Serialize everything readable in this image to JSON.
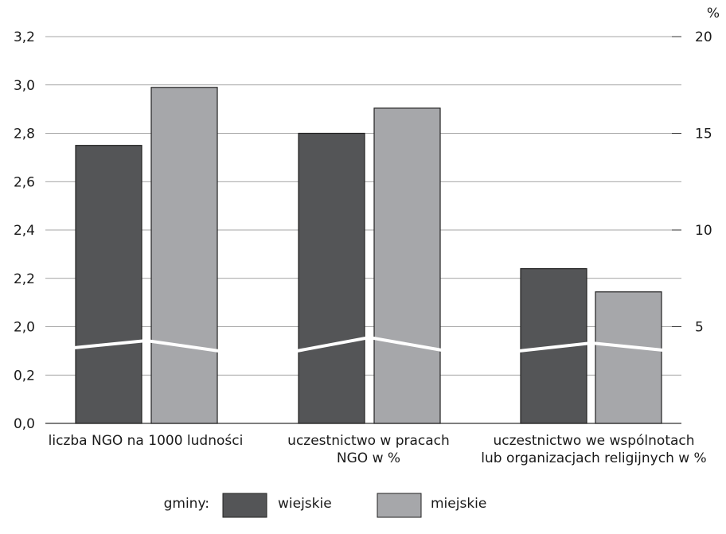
{
  "chart_data": {
    "type": "bar",
    "categories": [
      [
        "liczba NGO na 1000 ludności"
      ],
      [
        "uczestnictwo w pracach",
        "NGO w %"
      ],
      [
        "uczestnictwo we wspólnotach",
        "lub organizacjach religijnych w %"
      ]
    ],
    "series": [
      {
        "name": "wiejskie",
        "color": "#545557",
        "values": [
          2.95,
          15,
          8
        ]
      },
      {
        "name": "miejskie",
        "color": "#a6a7aa",
        "values": [
          3.19,
          16.3,
          6.8
        ]
      }
    ],
    "left_axis": {
      "ticks": [
        "0,0",
        "0,2",
        "2,0",
        "2,2",
        "2,4",
        "2,6",
        "2,8",
        "3,0",
        "3,2"
      ],
      "applies_to": "liczba NGO na 1000 ludności",
      "broken": true
    },
    "right_axis": {
      "unit": "%",
      "ticks": [
        "5",
        "10",
        "15",
        "20"
      ],
      "ylim": [
        0,
        20
      ]
    },
    "grid": true,
    "legend": {
      "title": "gminy:",
      "placement": "bottom-center"
    }
  }
}
